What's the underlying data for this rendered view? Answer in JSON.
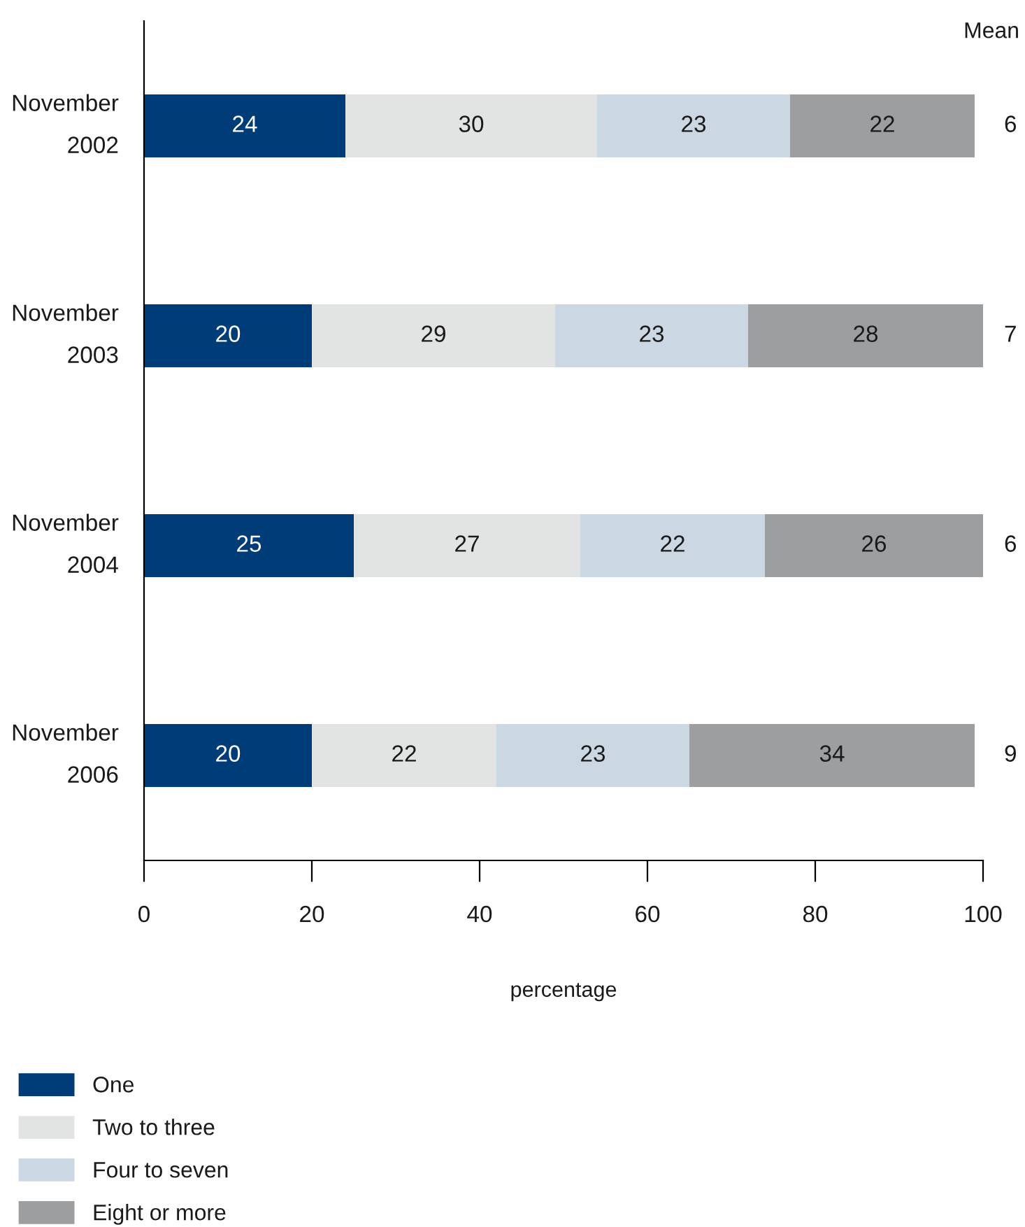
{
  "chart_data": {
    "type": "bar",
    "orientation": "horizontal",
    "stacked": true,
    "categories": [
      "November\n2002",
      "November\n2003",
      "November\n2004",
      "November\n2006"
    ],
    "series": [
      {
        "name": "One",
        "color": "#003c78",
        "values": [
          24,
          20,
          25,
          20
        ]
      },
      {
        "name": "Two to three",
        "color": "#e2e4e3",
        "values": [
          30,
          29,
          27,
          22
        ]
      },
      {
        "name": "Four to seven",
        "color": "#cbd7e2",
        "values": [
          23,
          23,
          22,
          23
        ]
      },
      {
        "name": "Eight or more",
        "color": "#9d9ea0",
        "values": [
          22,
          28,
          26,
          34
        ]
      }
    ],
    "xlim": [
      0,
      100
    ],
    "xticks": [
      0,
      20,
      40,
      60,
      80,
      100
    ],
    "xlabel": "percentage",
    "data_labels": true,
    "legend": "bottom left",
    "annotations": [
      "Mean",
      "6",
      "7",
      "6",
      "9"
    ]
  }
}
